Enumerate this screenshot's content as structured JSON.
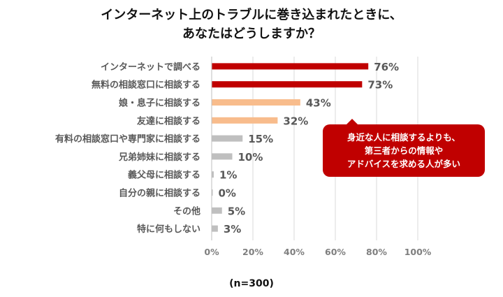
{
  "title": {
    "line1": "インターネット上のトラブルに巻き込まれたときに、",
    "line2": "あなたはどうしますか？"
  },
  "chart_data": {
    "type": "bar",
    "orientation": "horizontal",
    "categories": [
      "インターネットで調べる",
      "無料の相談窓口に相談する",
      "娘・息子に相談する",
      "友達に相談する",
      "有料の相談窓口や専門家に相談する",
      "兄弟姉妹に相談する",
      "義父母に相談する",
      "自分の親に相談する",
      "その他",
      "特に何もしない"
    ],
    "values": [
      76,
      73,
      43,
      32,
      15,
      10,
      1,
      0,
      5,
      3
    ],
    "value_labels": [
      "76%",
      "73%",
      "43%",
      "32%",
      "15%",
      "10%",
      "1%",
      "0%",
      "5%",
      "3%"
    ],
    "bar_colors": [
      "#c00000",
      "#c00000",
      "#f8bc8c",
      "#f8bc8c",
      "#bfbfbf",
      "#bfbfbf",
      "#bfbfbf",
      "#bfbfbf",
      "#bfbfbf",
      "#bfbfbf"
    ],
    "x_ticks": [
      "0%",
      "20%",
      "40%",
      "60%",
      "80%",
      "100%"
    ],
    "xlim": [
      0,
      100
    ],
    "grid": true
  },
  "callout": {
    "lines": [
      "身近な人に相談するよりも、",
      "第三者からの情報や",
      "アドバイスを求める人が多い"
    ],
    "color": "#c00000"
  },
  "footnote": "(n=300)"
}
